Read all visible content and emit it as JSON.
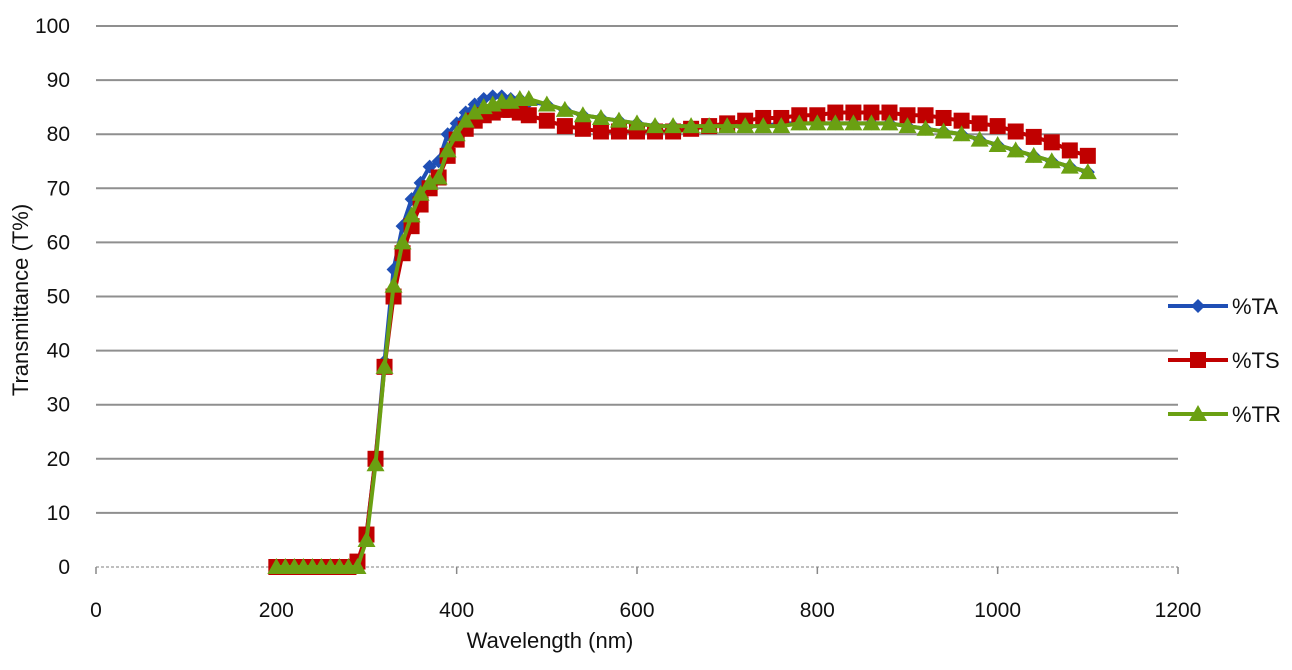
{
  "chart_data": {
    "type": "line",
    "title": "",
    "xlabel": "Wavelength (nm)",
    "ylabel": "Transmittance (T%)",
    "xlim": [
      0,
      1200
    ],
    "ylim": [
      0,
      100
    ],
    "xticks": [
      0,
      200,
      400,
      600,
      800,
      1000,
      1200
    ],
    "yticks": [
      0,
      10,
      20,
      30,
      40,
      50,
      60,
      70,
      80,
      90,
      100
    ],
    "grid": "horizontal",
    "legend": "right",
    "x": [
      200,
      210,
      220,
      230,
      240,
      250,
      260,
      270,
      280,
      290,
      300,
      310,
      320,
      330,
      340,
      350,
      360,
      370,
      380,
      390,
      400,
      410,
      420,
      430,
      440,
      450,
      460,
      470,
      480,
      500,
      520,
      540,
      560,
      580,
      600,
      620,
      640,
      660,
      680,
      700,
      720,
      740,
      760,
      780,
      800,
      820,
      840,
      860,
      880,
      900,
      920,
      940,
      960,
      980,
      1000,
      1020,
      1040,
      1060,
      1080,
      1100
    ],
    "series": [
      {
        "name": "%TA",
        "color": "#1f4fb5",
        "marker": "diamond",
        "values": [
          0,
          0,
          0,
          0,
          0,
          0,
          0,
          0,
          0,
          0.5,
          6,
          20,
          38,
          55,
          63,
          68,
          71,
          74,
          75,
          80,
          82,
          84,
          85.5,
          86.5,
          87,
          87,
          86.5,
          86.5,
          86,
          85.5,
          84.5,
          83.5,
          83,
          82.5,
          82,
          81.5,
          81.5,
          81.5,
          81.5,
          81.5,
          81.5,
          81.5,
          82,
          82,
          82,
          82,
          82,
          82,
          82,
          81.5,
          81,
          80.5,
          80,
          79,
          78,
          77,
          76,
          75,
          74,
          73
        ]
      },
      {
        "name": "%TS",
        "color": "#c00000",
        "marker": "square",
        "values": [
          0,
          0,
          0,
          0,
          0,
          0,
          0,
          0,
          0,
          1,
          6,
          20,
          37,
          50,
          58,
          63,
          67,
          70,
          72,
          76,
          79,
          81,
          82.5,
          83.5,
          84,
          84.5,
          84.5,
          84,
          83.5,
          82.5,
          81.5,
          81,
          80.5,
          80.5,
          80.5,
          80.5,
          80.5,
          81,
          81.5,
          82,
          82.5,
          83,
          83,
          83.5,
          83.5,
          84,
          84,
          84,
          84,
          83.5,
          83.5,
          83,
          82.5,
          82,
          81.5,
          80.5,
          79.5,
          78.5,
          77,
          76
        ]
      },
      {
        "name": "%TR",
        "color": "#6aa012",
        "marker": "triangle",
        "values": [
          0,
          0,
          0,
          0,
          0,
          0,
          0,
          0,
          0,
          0,
          5,
          19,
          37,
          52,
          60,
          65,
          69,
          71,
          72,
          77,
          80,
          82.5,
          84,
          85,
          85.5,
          86,
          86,
          86.5,
          86.5,
          85.5,
          84.5,
          83.5,
          83,
          82.5,
          82,
          81.5,
          81.5,
          81.5,
          81.5,
          81.5,
          81.5,
          81.5,
          81.5,
          82,
          82,
          82,
          82,
          82,
          82,
          81.5,
          81,
          80.5,
          80,
          79,
          78,
          77,
          76,
          75,
          74,
          73
        ]
      }
    ]
  }
}
